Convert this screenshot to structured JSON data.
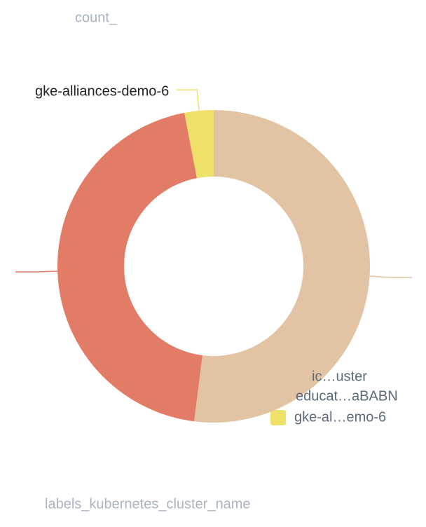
{
  "chart_data": {
    "type": "pie",
    "title": "count_",
    "x_label": "labels_kubernetes_cluster_name",
    "categories": [
      "ic…uster",
      "educat…aBABN",
      "gke-al…emo-6"
    ],
    "values": [
      52,
      45,
      3
    ],
    "colors": [
      "#e2c4a4",
      "#e37c66",
      "#efe06a"
    ],
    "slice_labels": [
      null,
      null,
      "gke-alliances-demo-6"
    ],
    "donut": true
  }
}
